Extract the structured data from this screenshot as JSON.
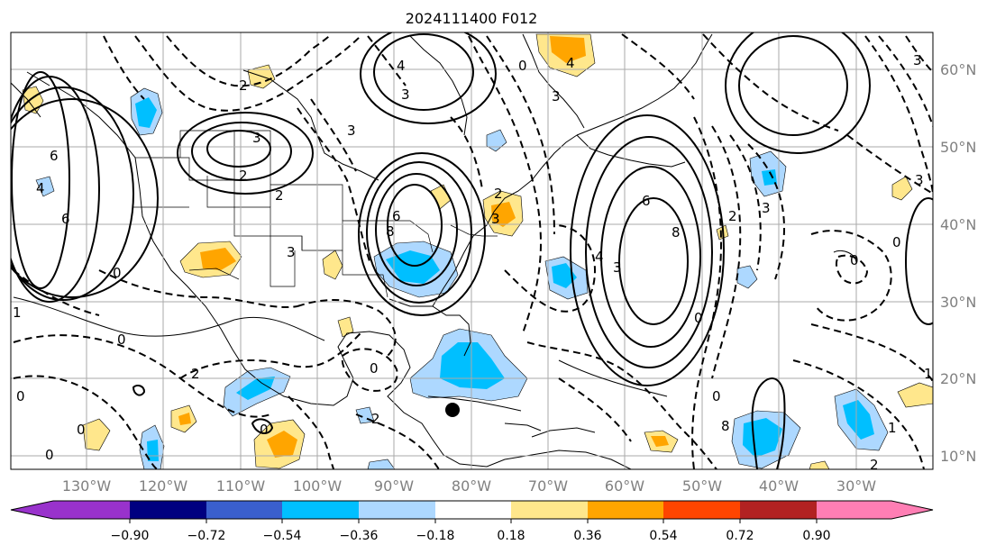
{
  "title": "2024111400 F012",
  "map": {
    "lon_labels": [
      "130°W",
      "120°W",
      "110°W",
      "100°W",
      "90°W",
      "80°W",
      "70°W",
      "60°W",
      "50°W",
      "40°W",
      "30°W"
    ],
    "lat_labels": [
      "60°N",
      "50°N",
      "40°N",
      "30°N",
      "20°N",
      "10°N"
    ],
    "marker": {
      "lon": "82°W",
      "lat": "16°N"
    },
    "contour_labels": [
      "2",
      "3",
      "6",
      "4",
      "6",
      "0",
      "2",
      "3",
      "2",
      "3",
      "6",
      "8",
      "3",
      "4",
      "0",
      "4",
      "3",
      "2",
      "3",
      "6",
      "8",
      "3",
      "4",
      "3",
      "0",
      "3",
      "2",
      "0",
      "0",
      "1",
      "0",
      "0",
      "2",
      "0",
      "1",
      "0",
      "0",
      "2",
      "1",
      "0",
      "8",
      "2",
      "3",
      "0"
    ]
  },
  "colorbar": {
    "tick_labels": [
      "−0.90",
      "−0.72",
      "−0.54",
      "−0.36",
      "−0.18",
      "0.18",
      "0.36",
      "0.54",
      "0.72",
      "0.90"
    ],
    "colors": [
      "#9932cc",
      "#000080",
      "#3a5fcd",
      "#00bfff",
      "#add8ff",
      "#ffffff",
      "#ffe78c",
      "#ffa500",
      "#ff4500",
      "#b22222",
      "#ff7eb4"
    ]
  }
}
